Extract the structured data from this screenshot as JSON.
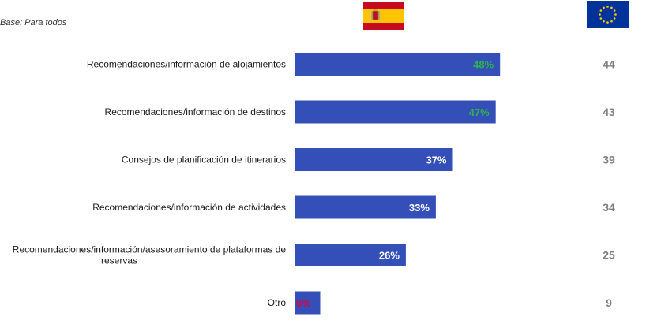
{
  "note": "Base: Para todos",
  "colors": {
    "bar": "#3450b8",
    "label_white": "#ffffff",
    "label_green": "#2db34a",
    "label_red": "#e0003c",
    "eu_value": "#7f7f7f",
    "es_red": "#c60b1e",
    "es_yellow": "#ffc400",
    "eu_blue": "#003399",
    "eu_star": "#ffcc00"
  },
  "flags": {
    "spain": "spain-flag-icon",
    "eu": "eu-flag-icon"
  },
  "chart_data": {
    "type": "bar",
    "orientation": "horizontal",
    "categories": [
      [
        "Recomendaciones/información de alojamientos"
      ],
      [
        "Recomendaciones/información de destinos"
      ],
      [
        "Consejos de planificación de itinerarios"
      ],
      [
        "Recomendaciones/información de actividades"
      ],
      [
        "Recomendaciones/información/asesoramiento de plataformas de",
        "reservas"
      ],
      [
        "Otro"
      ]
    ],
    "series": [
      {
        "values": [
          48,
          47,
          37,
          33,
          26,
          6
        ],
        "labels": [
          "48%",
          "47%",
          "37%",
          "33%",
          "26%",
          "6%"
        ],
        "label_colors": [
          "green",
          "green",
          "white",
          "white",
          "white",
          "red"
        ]
      }
    ],
    "eu_values": [
      44,
      43,
      39,
      34,
      25,
      9
    ],
    "xlim": [
      0,
      100
    ],
    "grid": false,
    "legend": "none"
  }
}
